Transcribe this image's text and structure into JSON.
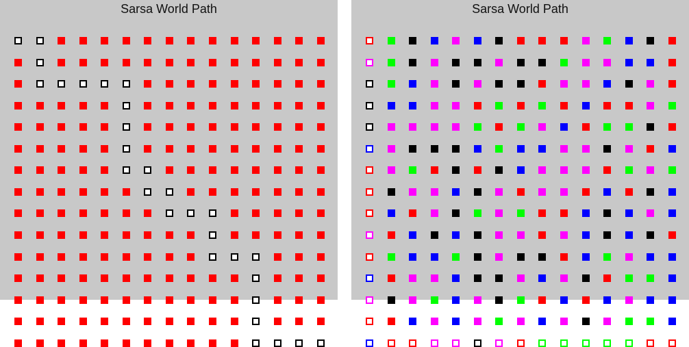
{
  "panels": [
    {
      "id": "left",
      "title": "Sarsa World Path",
      "cell_color": "#ff0000",
      "path_color": "#000000",
      "grid": {
        "rows": 15,
        "cols": 15
      },
      "path": [
        [
          0,
          0
        ],
        [
          0,
          1
        ],
        [
          1,
          1
        ],
        [
          2,
          1
        ],
        [
          2,
          2
        ],
        [
          2,
          3
        ],
        [
          2,
          4
        ],
        [
          2,
          5
        ],
        [
          3,
          5
        ],
        [
          4,
          5
        ],
        [
          5,
          5
        ],
        [
          6,
          5
        ],
        [
          6,
          6
        ],
        [
          7,
          6
        ],
        [
          7,
          7
        ],
        [
          8,
          7
        ],
        [
          8,
          8
        ],
        [
          8,
          9
        ],
        [
          9,
          9
        ],
        [
          10,
          9
        ],
        [
          10,
          10
        ],
        [
          10,
          11
        ],
        [
          11,
          11
        ],
        [
          12,
          11
        ],
        [
          13,
          11
        ],
        [
          14,
          11
        ],
        [
          14,
          12
        ],
        [
          14,
          13
        ],
        [
          14,
          14
        ]
      ]
    },
    {
      "id": "right",
      "title": "Sarsa World Path",
      "palette": {
        "R": "#ff0000",
        "G": "#00ff00",
        "B": "#0000ff",
        "K": "#000000",
        "M": "#ff00ff"
      },
      "cell_rows": [
        "RGKBMBKRRRMGBKR",
        "MGKMKKMKKGMMBBR",
        "KGBMKMKKRMMBKMR",
        "KBBMMRGRGRBRRMG",
        "KMMMMGRGMBRGGKR",
        "BMKKKBGBBMMKMRB",
        "RMGRKRKBMMMRGMG",
        "RKMMBKMRMMRBRKB",
        "RBRMKGMGRRBKBMB",
        "MRBKBKMMRMBKBKR",
        "RGBBGKMKKRBGMBB",
        "BRMMBKKMBMKRGGB",
        "MKMGBMKGRBRBMBB",
        "RRBMBMGMBMKMGGB",
        "BRRMMKMRGGGGGRR"
      ],
      "path": [
        [
          0,
          0
        ],
        [
          1,
          0
        ],
        [
          2,
          0
        ],
        [
          3,
          0
        ],
        [
          4,
          0
        ],
        [
          5,
          0
        ],
        [
          6,
          0
        ],
        [
          7,
          0
        ],
        [
          8,
          0
        ],
        [
          9,
          0
        ],
        [
          10,
          0
        ],
        [
          11,
          0
        ],
        [
          12,
          0
        ],
        [
          13,
          0
        ],
        [
          14,
          0
        ],
        [
          14,
          1
        ],
        [
          14,
          2
        ],
        [
          14,
          3
        ],
        [
          14,
          4
        ],
        [
          14,
          5
        ],
        [
          14,
          6
        ],
        [
          14,
          7
        ],
        [
          14,
          8
        ],
        [
          14,
          9
        ],
        [
          14,
          10
        ],
        [
          14,
          11
        ],
        [
          14,
          12
        ],
        [
          14,
          13
        ],
        [
          14,
          14
        ]
      ]
    }
  ]
}
